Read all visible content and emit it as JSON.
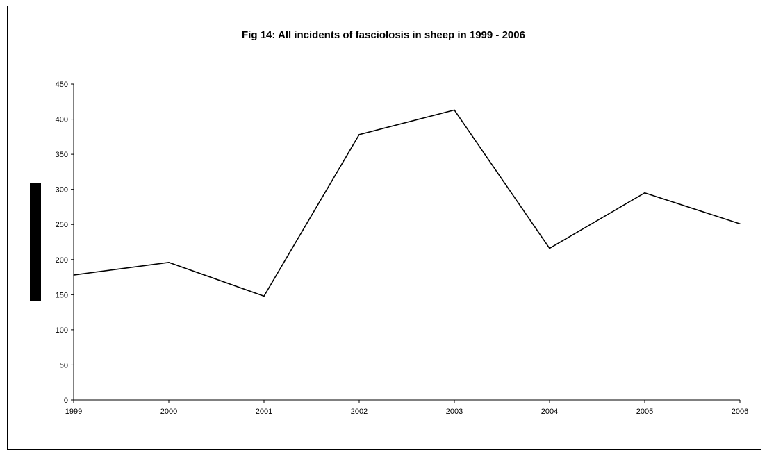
{
  "chart_data": {
    "type": "line",
    "title": "Fig 14:  All incidents of fasciolosis in sheep in 1999 - 2006",
    "xlabel": "",
    "ylabel": "",
    "categories": [
      "1999",
      "2000",
      "2001",
      "2002",
      "2003",
      "2004",
      "2005",
      "2006"
    ],
    "series": [
      {
        "values": [
          178,
          196,
          148,
          378,
          413,
          216,
          295,
          251
        ]
      }
    ],
    "ylim": [
      0,
      450
    ],
    "yticks": [
      0,
      50,
      100,
      150,
      200,
      250,
      300,
      350,
      400,
      450
    ],
    "grid": false,
    "legend": "none",
    "line_color": "#000000"
  }
}
